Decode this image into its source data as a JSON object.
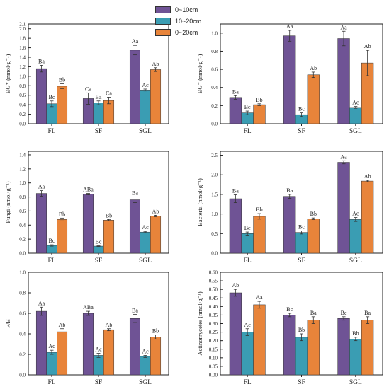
{
  "legend": {
    "items": [
      {
        "label": "0~10cm",
        "color": "#6f5395"
      },
      {
        "label": "10~20cm",
        "color": "#3a9db3"
      },
      {
        "label": "0~20cm",
        "color": "#e8843a"
      }
    ]
  },
  "chart_data": [
    {
      "type": "bar",
      "categories": [
        "FL",
        "SF",
        "SGL"
      ],
      "ylabel": "BG⁺ (nmol·g⁻¹)",
      "ylim": [
        0,
        2.1
      ],
      "yticks": [
        0,
        0.2,
        0.4,
        0.6,
        0.8,
        1.0,
        1.2,
        1.4,
        1.6,
        1.8,
        2.0,
        2.1
      ],
      "tick_decimals": 1,
      "series": [
        {
          "name": "0~10cm",
          "values": [
            1.16,
            0.53,
            1.55
          ],
          "errors": [
            0.07,
            0.12,
            0.1
          ],
          "labels": [
            "Ba",
            "Ca",
            "Aa"
          ]
        },
        {
          "name": "10~20cm",
          "values": [
            0.42,
            0.44,
            0.71
          ],
          "errors": [
            0.06,
            0.04,
            0.02
          ],
          "labels": [
            "Bc",
            "Ba",
            "Ac"
          ]
        },
        {
          "name": "0~20cm",
          "values": [
            0.79,
            0.49,
            1.14
          ],
          "errors": [
            0.05,
            0.07,
            0.04
          ],
          "labels": [
            "Bb",
            "Ca",
            "Ab"
          ]
        }
      ]
    },
    {
      "type": "bar",
      "categories": [
        "FL",
        "SF",
        "SGL"
      ],
      "ylabel": "BG⁻ (nmol·g⁻¹)",
      "ylim": [
        0,
        1.1
      ],
      "yticks": [
        0,
        0.2,
        0.4,
        0.6,
        0.8,
        1.0
      ],
      "tick_decimals": 1,
      "series": [
        {
          "name": "0~10cm",
          "values": [
            0.29,
            0.97,
            0.94
          ],
          "errors": [
            0.02,
            0.06,
            0.08
          ],
          "labels": [
            "Ba",
            "Aa",
            "Aa"
          ]
        },
        {
          "name": "10~20cm",
          "values": [
            0.12,
            0.1,
            0.18
          ],
          "errors": [
            0.02,
            0.02,
            0.01
          ],
          "labels": [
            "Bc",
            "Bc",
            "Ac"
          ]
        },
        {
          "name": "0~20cm",
          "values": [
            0.21,
            0.54,
            0.67
          ],
          "errors": [
            0.01,
            0.03,
            0.14
          ],
          "labels": [
            "Bb",
            "Ab",
            "Ab"
          ]
        }
      ]
    },
    {
      "type": "bar",
      "categories": [
        "FL",
        "SF",
        "SGL"
      ],
      "ylabel": "Fungi (nmol·g⁻¹)",
      "ylim": [
        0,
        1.45
      ],
      "yticks": [
        0,
        0.2,
        0.4,
        0.6,
        0.8,
        1.0,
        1.2,
        1.4
      ],
      "tick_decimals": 1,
      "series": [
        {
          "name": "0~10cm",
          "values": [
            0.85,
            0.84,
            0.76
          ],
          "errors": [
            0.04,
            0.01,
            0.04
          ],
          "labels": [
            "Aa",
            "ABa",
            "Ba"
          ]
        },
        {
          "name": "10~20cm",
          "values": [
            0.11,
            0.1,
            0.3
          ],
          "errors": [
            0.01,
            0.005,
            0.01
          ],
          "labels": [
            "Bc",
            "Bc",
            "Ac"
          ]
        },
        {
          "name": "0~20cm",
          "values": [
            0.48,
            0.47,
            0.53
          ],
          "errors": [
            0.02,
            0.01,
            0.01
          ],
          "labels": [
            "Bb",
            "Bb",
            "Ab"
          ]
        }
      ]
    },
    {
      "type": "bar",
      "categories": [
        "FL",
        "SF",
        "SGL"
      ],
      "ylabel": "Bacteria (nmol·g⁻¹)",
      "ylim": [
        0,
        2.6
      ],
      "yticks": [
        0,
        0.5,
        1.0,
        1.5,
        2.0,
        2.5
      ],
      "tick_decimals": 1,
      "series": [
        {
          "name": "0~10cm",
          "values": [
            1.39,
            1.45,
            2.32
          ],
          "errors": [
            0.1,
            0.05,
            0.04
          ],
          "labels": [
            "Ba",
            "Ba",
            "Aa"
          ]
        },
        {
          "name": "10~20cm",
          "values": [
            0.5,
            0.53,
            0.86
          ],
          "errors": [
            0.04,
            0.04,
            0.05
          ],
          "labels": [
            "Bc",
            "Bc",
            "Ac"
          ]
        },
        {
          "name": "0~20cm",
          "values": [
            0.94,
            0.88,
            1.84
          ],
          "errors": [
            0.07,
            0.02,
            0.02
          ],
          "labels": [
            "Bb",
            "Bb",
            "Ab"
          ]
        }
      ]
    },
    {
      "type": "bar",
      "categories": [
        "FL",
        "SF",
        "SGL"
      ],
      "ylabel": "F/B",
      "ylim": [
        0,
        1.0
      ],
      "yticks": [
        0,
        0.2,
        0.4,
        0.6,
        0.8,
        1.0
      ],
      "tick_decimals": 1,
      "series": [
        {
          "name": "0~10cm",
          "values": [
            0.62,
            0.6,
            0.55
          ],
          "errors": [
            0.04,
            0.02,
            0.04
          ],
          "labels": [
            "Aa",
            "ABa",
            "Ba"
          ]
        },
        {
          "name": "10~20cm",
          "values": [
            0.22,
            0.19,
            0.18
          ],
          "errors": [
            0.02,
            0.02,
            0.01
          ],
          "labels": [
            "Ac",
            "Ac",
            "Ac"
          ]
        },
        {
          "name": "0~20cm",
          "values": [
            0.42,
            0.44,
            0.37
          ],
          "errors": [
            0.03,
            0.01,
            0.02
          ],
          "labels": [
            "Ab",
            "Ab",
            "Bb"
          ]
        }
      ]
    },
    {
      "type": "bar",
      "categories": [
        "FL",
        "SF",
        "SGL"
      ],
      "ylabel": "Actinomycetes (nmol·g⁻¹)",
      "ylim": [
        0,
        0.6
      ],
      "yticks": [
        0,
        0.05,
        0.1,
        0.15,
        0.2,
        0.25,
        0.3,
        0.35,
        0.4,
        0.45,
        0.5,
        0.55,
        0.6
      ],
      "tick_decimals": 2,
      "series": [
        {
          "name": "0~10cm",
          "values": [
            0.48,
            0.35,
            0.33
          ],
          "errors": [
            0.02,
            0.01,
            0.01
          ],
          "labels": [
            "Ab",
            "Bc",
            "Bc"
          ]
        },
        {
          "name": "10~20cm",
          "values": [
            0.25,
            0.22,
            0.21
          ],
          "errors": [
            0.02,
            0.02,
            0.01
          ],
          "labels": [
            "Ac",
            "Bb",
            "Bb"
          ]
        },
        {
          "name": "0~20cm",
          "values": [
            0.41,
            0.32,
            0.32
          ],
          "errors": [
            0.02,
            0.02,
            0.02
          ],
          "labels": [
            "Aa",
            "Ba",
            "Ba"
          ]
        }
      ]
    }
  ]
}
